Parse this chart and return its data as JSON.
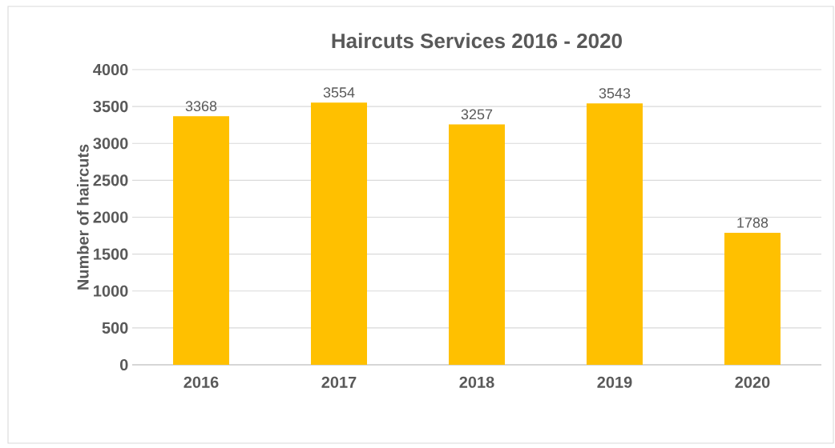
{
  "chart_data": {
    "type": "bar",
    "title": "Haircuts Services 2016 - 2020",
    "ylabel": "Number of haircuts",
    "categories": [
      "2016",
      "2017",
      "2018",
      "2019",
      "2020"
    ],
    "values": [
      3368,
      3554,
      3257,
      3543,
      1788
    ],
    "color": "#ffc000",
    "ylim": [
      0,
      4000
    ],
    "yticks": [
      0,
      500,
      1000,
      1500,
      2000,
      2500,
      3000,
      3500,
      4000
    ],
    "grid": "y",
    "data_labels": true
  }
}
